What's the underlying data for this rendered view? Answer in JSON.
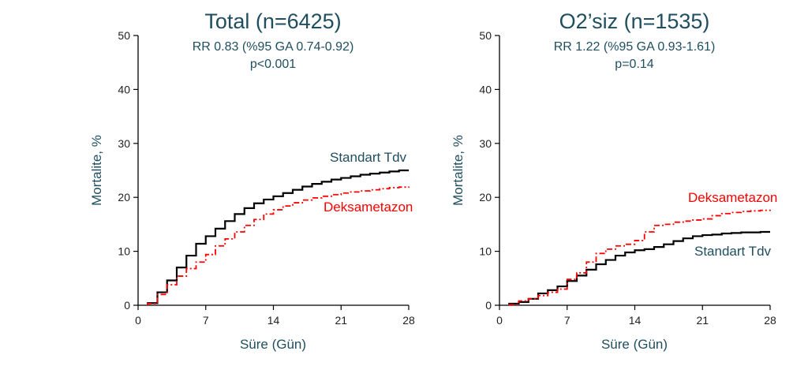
{
  "colors": {
    "text": "#1f4e5f",
    "standart": "#000000",
    "deksametazon": "#ff0000"
  },
  "chart_data": [
    {
      "type": "line",
      "step": true,
      "title": "Total (n=6425)",
      "subtitle_lines": [
        "RR 0.83 (%95 GA 0.74-0.92)",
        "p<0.001"
      ],
      "xlabel": "Süre (Gün)",
      "ylabel": "Mortalite, %",
      "xlim": [
        0,
        28
      ],
      "ylim": [
        0,
        50
      ],
      "xticks": [
        0,
        7,
        14,
        21,
        28
      ],
      "yticks": [
        0,
        10,
        20,
        30,
        40,
        50
      ],
      "grid": false,
      "series": [
        {
          "name": "Standart Tdv",
          "style": "solid",
          "color": "#000000",
          "x": [
            1,
            2,
            3,
            4,
            5,
            6,
            7,
            8,
            9,
            10,
            11,
            12,
            13,
            14,
            15,
            16,
            17,
            18,
            19,
            20,
            21,
            22,
            23,
            24,
            25,
            26,
            27,
            28
          ],
          "y": [
            0.4,
            2.4,
            4.6,
            7.0,
            9.2,
            11.4,
            12.8,
            14.2,
            15.6,
            16.9,
            18.0,
            18.9,
            19.6,
            20.2,
            20.8,
            21.4,
            22.0,
            22.5,
            22.9,
            23.3,
            23.6,
            23.9,
            24.2,
            24.4,
            24.6,
            24.8,
            25.0,
            25.0
          ]
        },
        {
          "name": "Deksametazon",
          "style": "dashdot",
          "color": "#ff0000",
          "x": [
            1,
            2,
            3,
            4,
            5,
            6,
            7,
            8,
            9,
            10,
            11,
            12,
            13,
            14,
            15,
            16,
            17,
            18,
            19,
            20,
            21,
            22,
            23,
            24,
            25,
            26,
            27,
            28
          ],
          "y": [
            0.3,
            2.0,
            3.8,
            5.4,
            6.8,
            8.0,
            9.4,
            11.0,
            12.3,
            13.6,
            14.8,
            15.9,
            16.9,
            17.7,
            18.4,
            19.0,
            19.5,
            19.9,
            20.2,
            20.5,
            20.8,
            21.0,
            21.2,
            21.4,
            21.6,
            21.8,
            21.9,
            22.0
          ]
        }
      ]
    },
    {
      "type": "line",
      "step": true,
      "title": "O2’siz (n=1535)",
      "subtitle_lines": [
        "RR 1.22 (%95 GA 0.93-1.61)",
        "p=0.14"
      ],
      "xlabel": "Süre (Gün)",
      "ylabel": "Mortalite, %",
      "xlim": [
        0,
        28
      ],
      "ylim": [
        0,
        50
      ],
      "xticks": [
        0,
        7,
        14,
        21,
        28
      ],
      "yticks": [
        0,
        10,
        20,
        30,
        40,
        50
      ],
      "grid": false,
      "series": [
        {
          "name": "Standart Tdv",
          "style": "solid",
          "color": "#000000",
          "x": [
            1,
            2,
            3,
            4,
            5,
            6,
            7,
            8,
            9,
            10,
            11,
            12,
            13,
            14,
            15,
            16,
            17,
            18,
            19,
            20,
            21,
            22,
            23,
            24,
            25,
            26,
            27,
            28
          ],
          "y": [
            0.3,
            0.6,
            1.2,
            2.2,
            2.8,
            3.5,
            4.5,
            5.5,
            6.6,
            7.6,
            8.4,
            9.2,
            9.8,
            10.2,
            10.4,
            10.8,
            11.3,
            11.9,
            12.4,
            12.8,
            13.0,
            13.1,
            13.3,
            13.4,
            13.5,
            13.5,
            13.6,
            13.6
          ]
        },
        {
          "name": "Deksametazon",
          "style": "dashdot",
          "color": "#ff0000",
          "x": [
            1,
            2,
            3,
            4,
            5,
            6,
            7,
            8,
            9,
            10,
            11,
            12,
            13,
            14,
            15,
            16,
            17,
            18,
            19,
            20,
            21,
            22,
            23,
            24,
            25,
            26,
            27,
            28
          ],
          "y": [
            0.1,
            0.8,
            1.2,
            1.8,
            2.4,
            3.0,
            4.8,
            6.0,
            8.0,
            9.6,
            10.4,
            11.0,
            11.3,
            12.0,
            13.6,
            14.8,
            15.0,
            15.4,
            15.6,
            15.8,
            16.0,
            16.6,
            17.0,
            17.2,
            17.4,
            17.5,
            17.6,
            17.7
          ]
        }
      ]
    }
  ]
}
